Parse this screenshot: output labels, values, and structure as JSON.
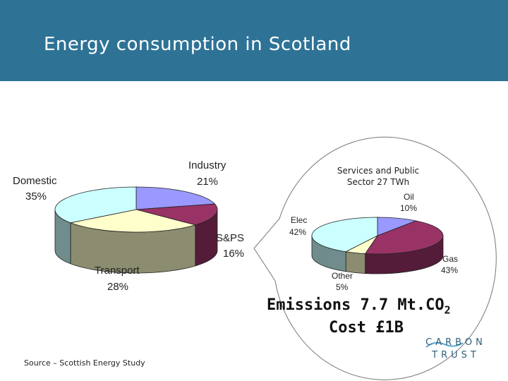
{
  "header": {
    "title": "Energy consumption in Scotland"
  },
  "source": "Source – Scottish Energy Study",
  "emissions": {
    "prefix": "Emissions 7.7 Mt.CO",
    "subscript": "2",
    "cost": "Cost £1B"
  },
  "logo": {
    "line1": "CARBON",
    "line2": "TRUST"
  },
  "chart_data": [
    {
      "type": "pie",
      "title": "",
      "slices": [
        {
          "name": "Industry",
          "label": "21%",
          "value": 21,
          "color": "#9999ff"
        },
        {
          "name": "S&PS",
          "label": "16%",
          "value": 16,
          "color": "#993366"
        },
        {
          "name": "Transport",
          "label": "28%",
          "value": 28,
          "color": "#ffffcc"
        },
        {
          "name": "Domestic",
          "label": "35%",
          "value": 35,
          "color": "#ccffff"
        }
      ]
    },
    {
      "type": "pie",
      "title": "Services and Public Sector 27 TWh",
      "title_lines": [
        "Services and Public",
        "Sector 27 TWh"
      ],
      "slices": [
        {
          "name": "Oil",
          "label": "10%",
          "value": 10,
          "color": "#9999ff"
        },
        {
          "name": "Gas",
          "label": "43%",
          "value": 43,
          "color": "#993366"
        },
        {
          "name": "Other",
          "label": "5%",
          "value": 5,
          "color": "#ffffcc"
        },
        {
          "name": "Elec",
          "label": "42%",
          "value": 42,
          "color": "#ccffff"
        }
      ]
    }
  ]
}
